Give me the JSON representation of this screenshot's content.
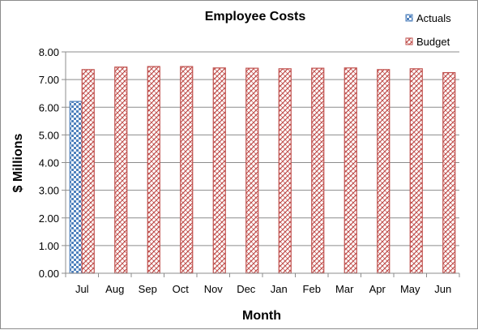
{
  "chart_data": {
    "type": "bar",
    "title": "Employee Costs",
    "xlabel": "Month",
    "ylabel": "$ Millions",
    "categories": [
      "Jul",
      "Aug",
      "Sep",
      "Oct",
      "Nov",
      "Dec",
      "Jan",
      "Feb",
      "Mar",
      "Apr",
      "May",
      "Jun"
    ],
    "ylim": [
      0,
      8
    ],
    "yticks": [
      "0.00",
      "1.00",
      "2.00",
      "3.00",
      "4.00",
      "5.00",
      "6.00",
      "7.00",
      "8.00"
    ],
    "grid": true,
    "legend_position": "top-right",
    "series": [
      {
        "name": "Actuals",
        "values": [
          6.21,
          null,
          null,
          null,
          null,
          null,
          null,
          null,
          null,
          null,
          null,
          null
        ],
        "color": "#4f81bd"
      },
      {
        "name": "Budget",
        "values": [
          7.36,
          7.45,
          7.47,
          7.47,
          7.42,
          7.41,
          7.39,
          7.41,
          7.42,
          7.36,
          7.39,
          7.25
        ],
        "color": "#c0504d"
      }
    ]
  }
}
